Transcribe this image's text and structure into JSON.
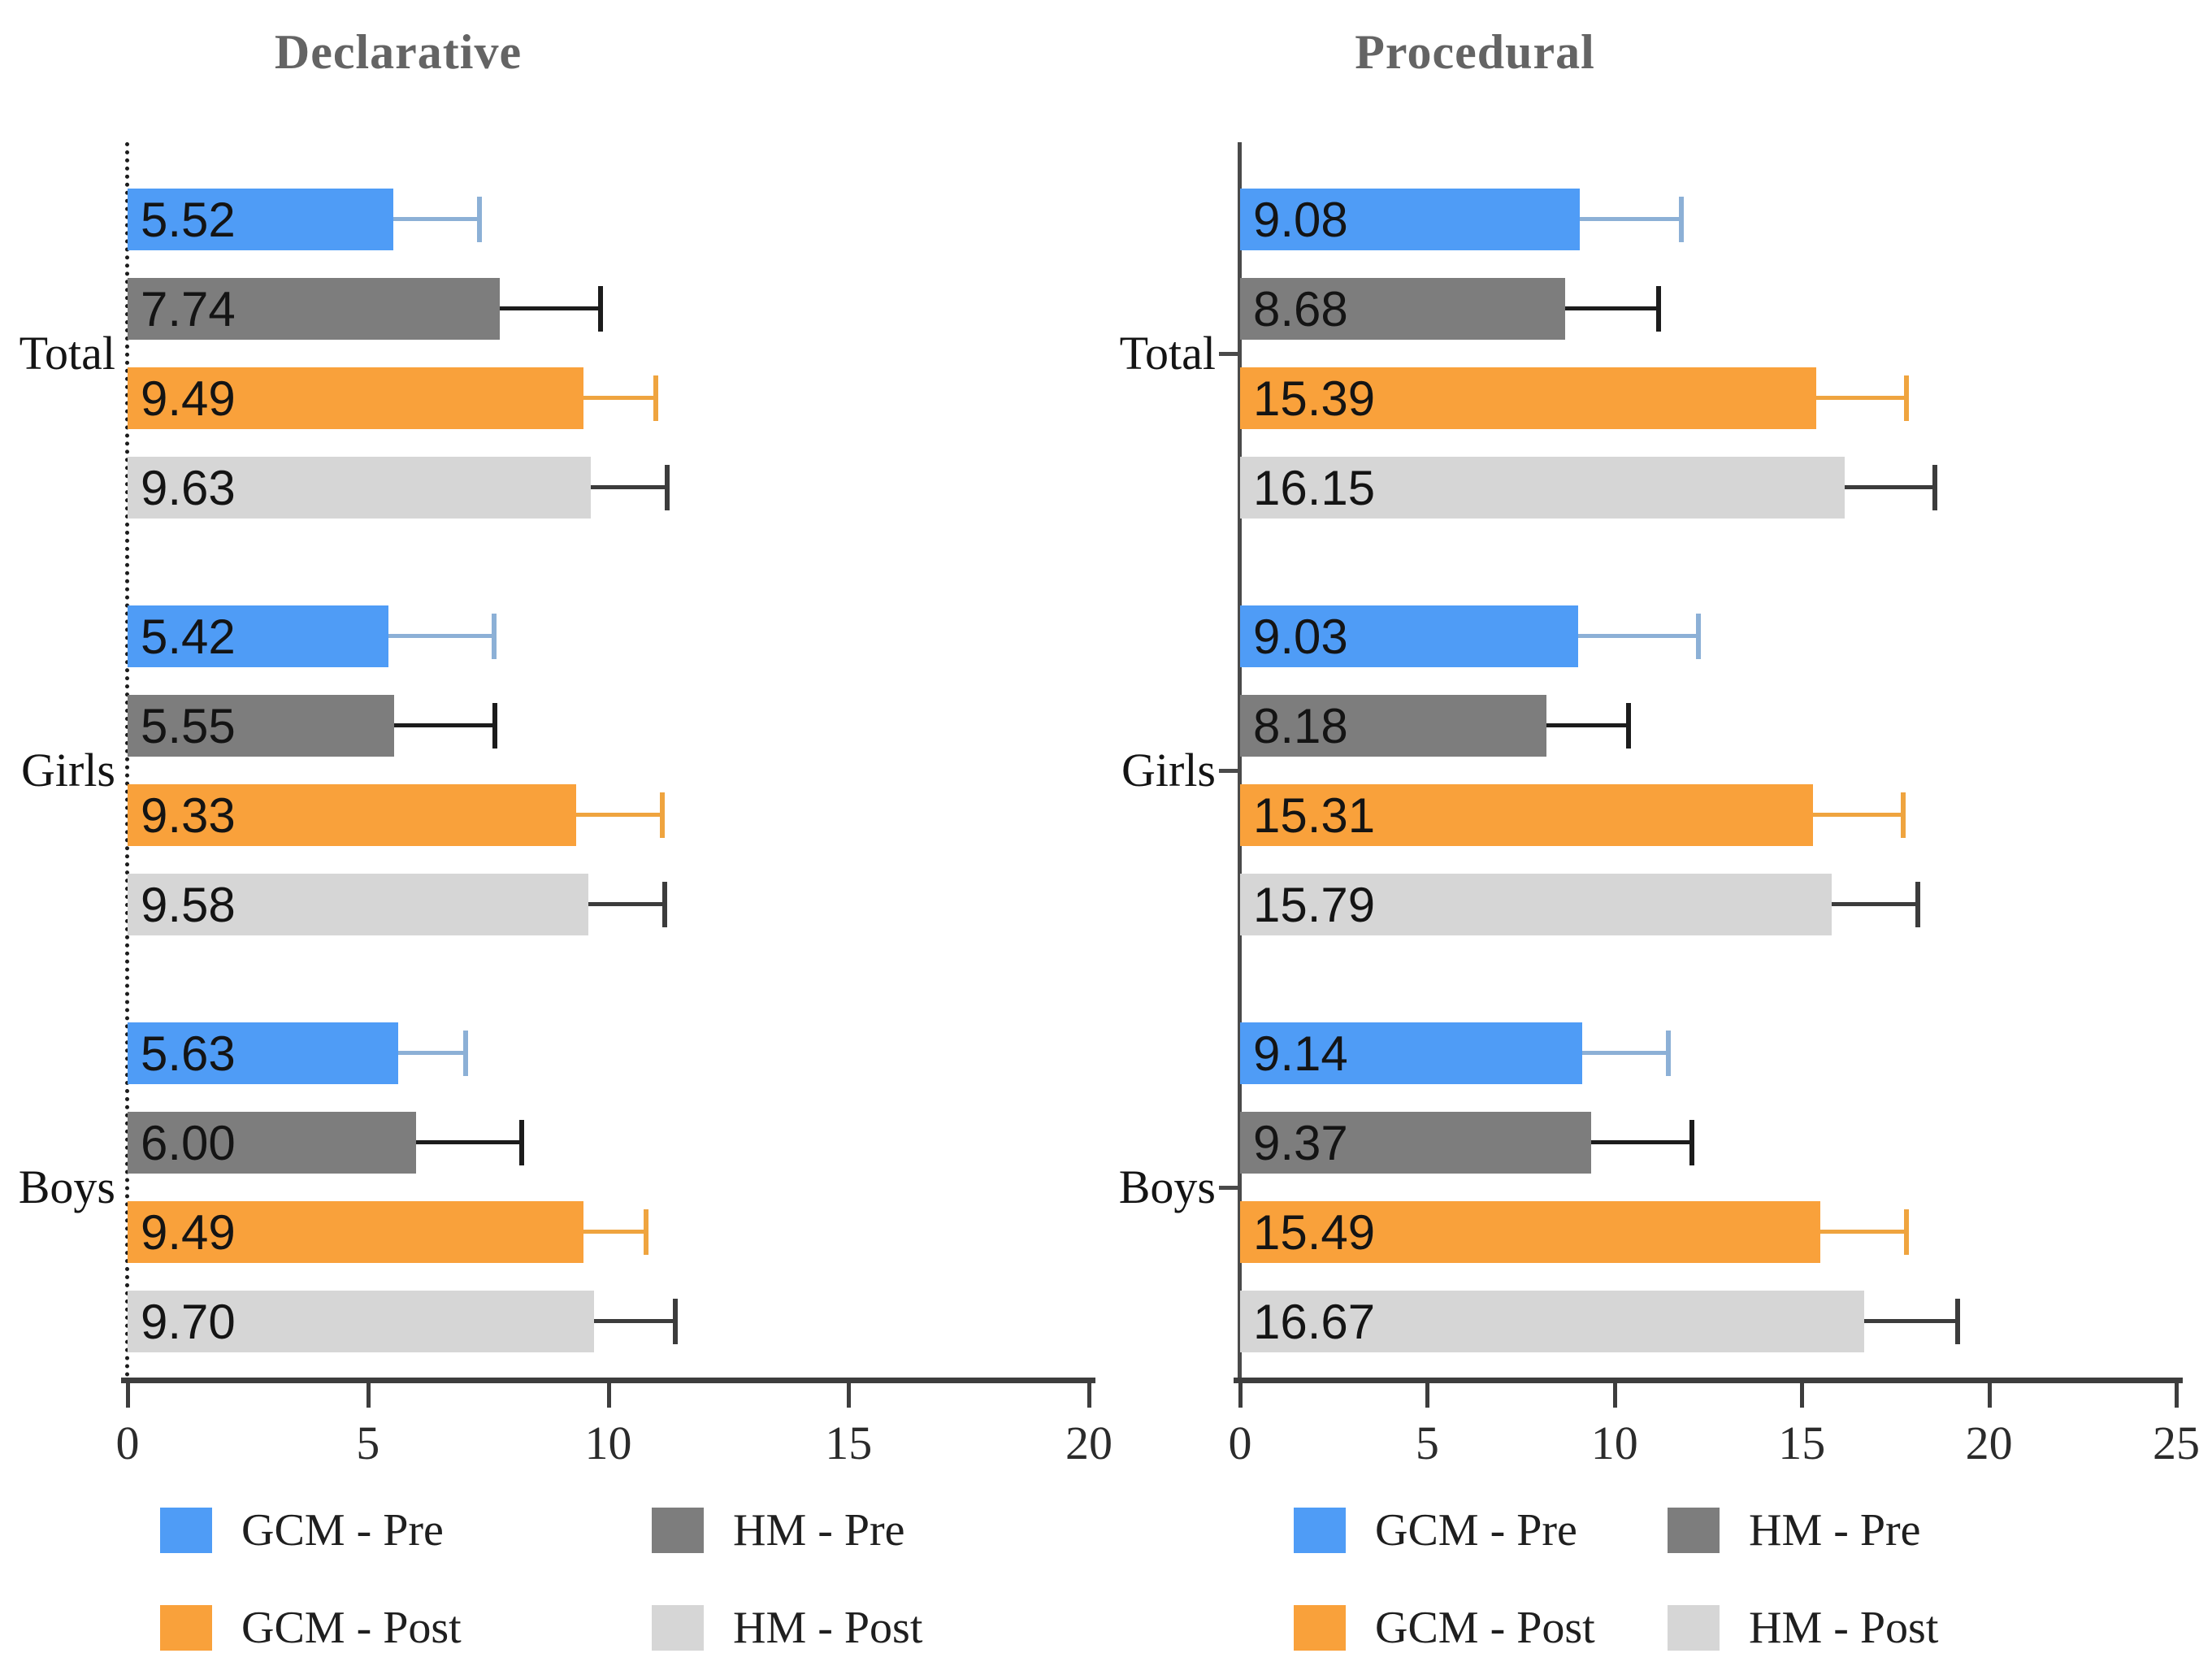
{
  "figure": {
    "background": "#ffffff",
    "text_color": "#141414",
    "axis_color": "#3d3d3d",
    "title_color": "#646464"
  },
  "chart_data": [
    {
      "type": "bar",
      "orientation": "horizontal",
      "title": "Declarative",
      "categories": [
        "Total",
        "Girls",
        "Boys"
      ],
      "xlim": [
        0,
        20
      ],
      "xticks": [
        0,
        5,
        10,
        15,
        20
      ],
      "grid": false,
      "value_label_format": "2-decimals-inside-left",
      "error_bars": "right-whisker-with-cap",
      "legend_position": "bottom-two-columns",
      "series": [
        {
          "name": "GCM - Pre",
          "color": "#4f9cf6",
          "error_color": "#8cb0d6",
          "values": [
            5.52,
            5.42,
            5.63
          ],
          "errors": [
            1.8,
            2.2,
            1.4
          ]
        },
        {
          "name": "HM - Pre",
          "color": "#7d7d7d",
          "error_color": "#1c1c1c",
          "values": [
            7.74,
            5.55,
            6.0
          ],
          "errors": [
            2.1,
            2.1,
            2.2
          ]
        },
        {
          "name": "GCM - Post",
          "color": "#f9a13b",
          "error_color": "#efa43f",
          "values": [
            9.49,
            9.33,
            9.49
          ],
          "errors": [
            1.5,
            1.8,
            1.3
          ]
        },
        {
          "name": "HM - Post",
          "color": "#d6d6d6",
          "error_color": "#3c3c3c",
          "values": [
            9.63,
            9.58,
            9.7
          ],
          "errors": [
            1.6,
            1.6,
            1.7
          ]
        }
      ]
    },
    {
      "type": "bar",
      "orientation": "horizontal",
      "title": "Procedural",
      "categories": [
        "Total",
        "Girls",
        "Boys"
      ],
      "xlim": [
        0,
        25
      ],
      "xticks": [
        0,
        5,
        10,
        15,
        20,
        25
      ],
      "grid": false,
      "value_label_format": "2-decimals-inside-left",
      "error_bars": "right-whisker-with-cap",
      "legend_position": "bottom-two-columns",
      "series": [
        {
          "name": "GCM - Pre",
          "color": "#4f9cf6",
          "error_color": "#8cb0d6",
          "values": [
            9.08,
            9.03,
            9.14
          ],
          "errors": [
            2.7,
            3.2,
            2.3
          ]
        },
        {
          "name": "HM - Pre",
          "color": "#7d7d7d",
          "error_color": "#1c1c1c",
          "values": [
            8.68,
            8.18,
            9.37
          ],
          "errors": [
            2.5,
            2.2,
            2.7
          ]
        },
        {
          "name": "GCM - Post",
          "color": "#f9a13b",
          "error_color": "#efa43f",
          "values": [
            15.39,
            15.31,
            15.49
          ],
          "errors": [
            2.4,
            2.4,
            2.3
          ]
        },
        {
          "name": "HM - Post",
          "color": "#d6d6d6",
          "error_color": "#3c3c3c",
          "values": [
            16.15,
            15.79,
            16.67
          ],
          "errors": [
            2.4,
            2.3,
            2.5
          ]
        }
      ]
    }
  ]
}
